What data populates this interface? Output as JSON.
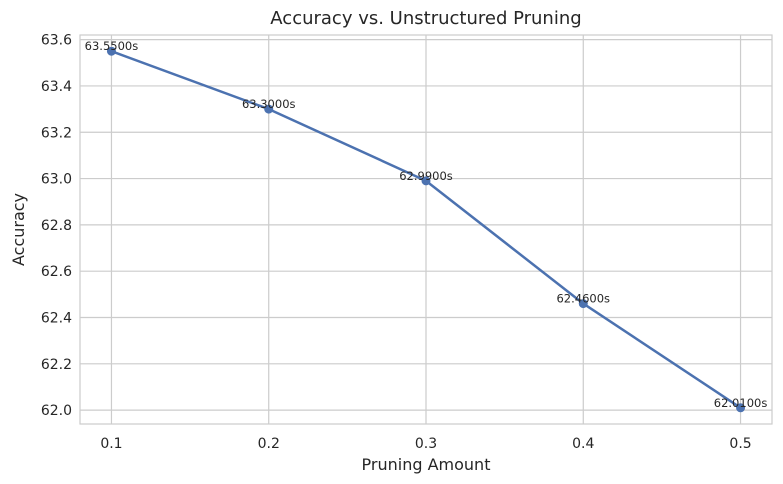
{
  "chart_data": {
    "type": "line",
    "title": "Accuracy vs. Unstructured Pruning",
    "xlabel": "Pruning Amount",
    "ylabel": "Accuracy",
    "x": [
      0.1,
      0.2,
      0.3,
      0.4,
      0.5
    ],
    "x_tick_labels": [
      "0.1",
      "0.2",
      "0.3",
      "0.4",
      "0.5"
    ],
    "xlim": [
      0.08,
      0.52
    ],
    "ylim": [
      61.94,
      63.62
    ],
    "y_ticks": [
      62.0,
      62.2,
      62.4,
      62.6,
      62.8,
      63.0,
      63.2,
      63.4,
      63.6
    ],
    "y_tick_labels": [
      "62.0",
      "62.2",
      "62.4",
      "62.6",
      "62.8",
      "63.0",
      "63.2",
      "63.4",
      "63.6"
    ],
    "series": [
      {
        "values": [
          63.55,
          63.3,
          62.99,
          62.46,
          62.01
        ],
        "data_labels": [
          "63.5500s",
          "63.3000s",
          "62.9900s",
          "62.4600s",
          "62.0100s"
        ],
        "color": "#4c72b0"
      }
    ],
    "grid": true,
    "grid_color": "#cccccc",
    "axes_edge_color": "#cccccc"
  }
}
